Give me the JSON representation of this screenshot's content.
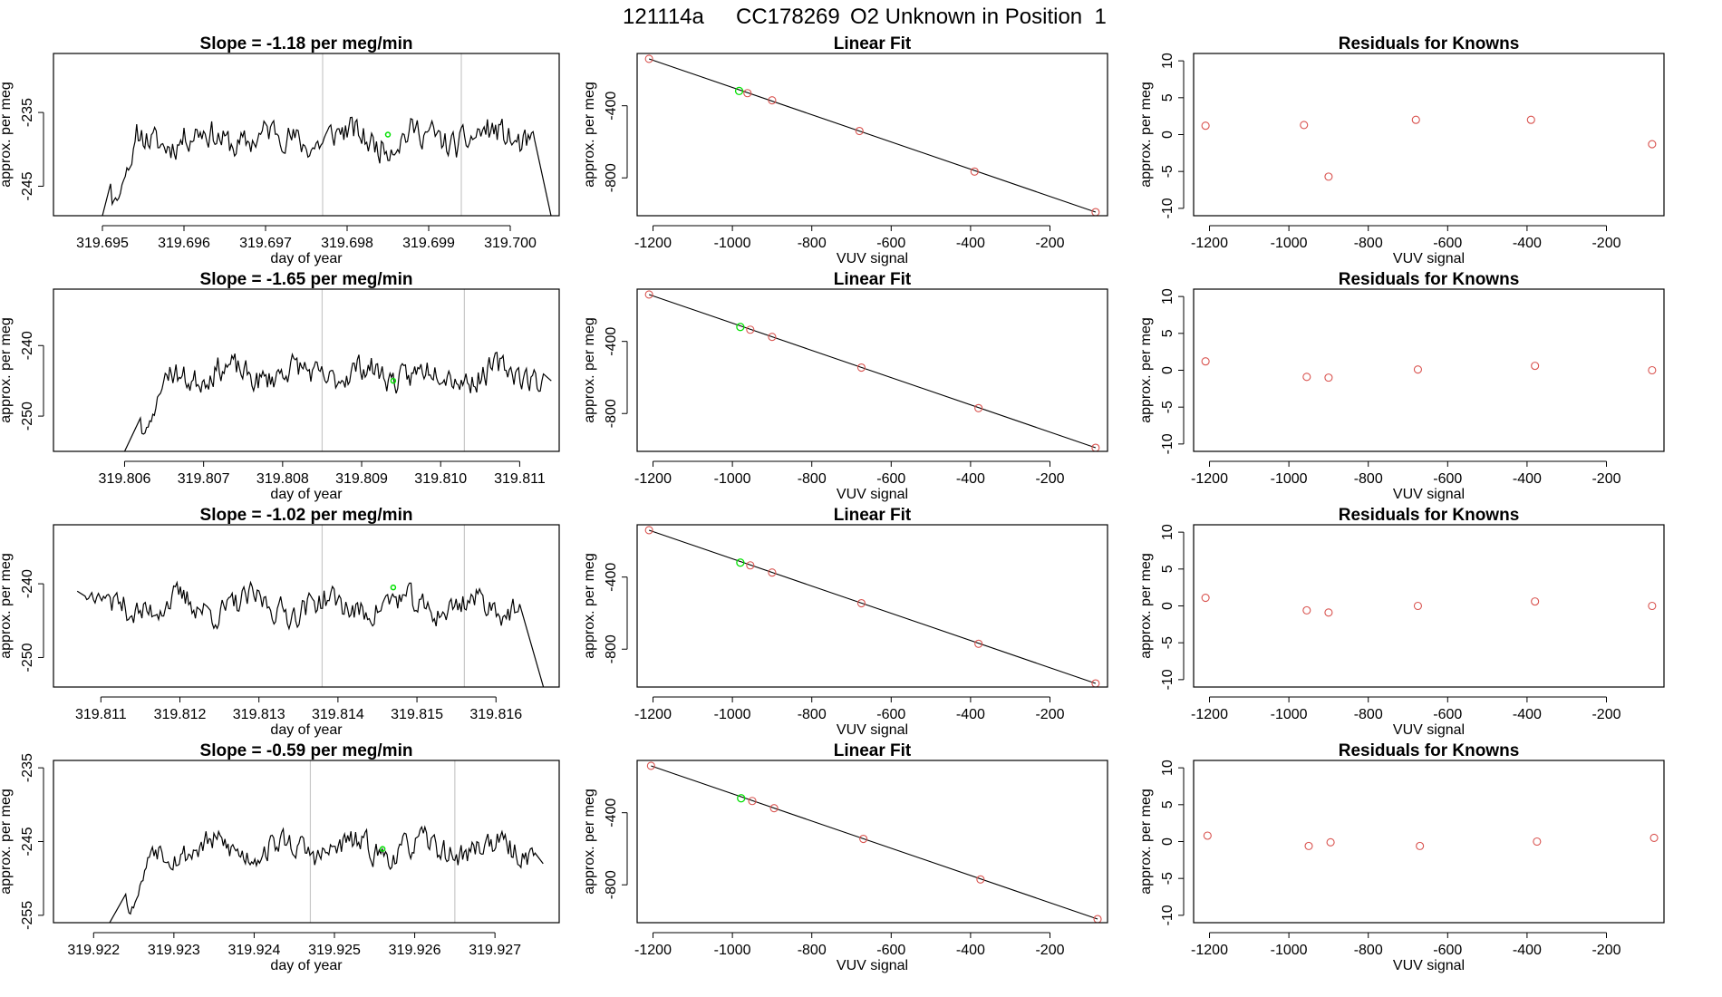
{
  "figure": {
    "title_parts": [
      "121114a",
      "CC178269",
      "O2 Unknown in Position  1"
    ]
  },
  "chart_data": [
    {
      "type": "line",
      "row": 0,
      "title": "Slope =  -1.18  per meg/min",
      "xlabel": "day of year",
      "ylabel": "approx. per meg",
      "xlim": [
        319.6944,
        319.7006
      ],
      "ylim": [
        -249,
        -227
      ],
      "xticks": [
        319.695,
        319.696,
        319.697,
        319.698,
        319.699,
        319.7
      ],
      "xtick_labels": [
        "319.695",
        "319.696",
        "319.697",
        "319.698",
        "319.699",
        "319.700"
      ],
      "yticks": [
        -245,
        -235
      ],
      "ytick_labels": [
        "-245",
        "-235"
      ],
      "vlines": [
        319.6977,
        319.6994
      ],
      "marker": {
        "x": 319.6985,
        "y": -238
      },
      "start": {
        "x": 319.695,
        "y": -249
      },
      "end": {
        "x": 319.7005,
        "y": -249
      },
      "series_start": 319.6951,
      "series_end": 319.7003,
      "level": -238.5,
      "noise": 3.2,
      "seed": 11,
      "drift": 1.0
    },
    {
      "type": "scatter",
      "row": 0,
      "subtype": "linear-fit",
      "title": "Linear Fit",
      "xlabel": "VUV signal",
      "ylabel": "approx. per meg",
      "xlim": [
        -1240,
        -55
      ],
      "ylim": [
        -1010,
        -110
      ],
      "xticks": [
        -1200,
        -1000,
        -800,
        -600,
        -400,
        -200
      ],
      "xtick_labels": [
        "-1200",
        "-1000",
        "-800",
        "-600",
        "-400",
        "-200"
      ],
      "yticks": [
        -800,
        -400
      ],
      "ytick_labels": [
        "-800",
        "-400"
      ],
      "points": [
        [
          -1210,
          -140
        ],
        [
          -962,
          -330
        ],
        [
          -900,
          -370
        ],
        [
          -680,
          -540
        ],
        [
          -390,
          -765
        ],
        [
          -85,
          -990
        ]
      ],
      "unknown": [
        -983,
        -318
      ],
      "fit": [
        [
          -1210,
          -140
        ],
        [
          -85,
          -990
        ]
      ]
    },
    {
      "type": "scatter",
      "row": 0,
      "subtype": "residuals",
      "title": "Residuals for Knowns",
      "xlabel": "VUV signal",
      "ylabel": "approx. per meg",
      "xlim": [
        -1240,
        -55
      ],
      "ylim": [
        -11,
        11
      ],
      "xticks": [
        -1200,
        -1000,
        -800,
        -600,
        -400,
        -200
      ],
      "xtick_labels": [
        "-1200",
        "-1000",
        "-800",
        "-600",
        "-400",
        "-200"
      ],
      "yticks": [
        -10,
        -5,
        0,
        5,
        10
      ],
      "ytick_labels": [
        "-10",
        "-5",
        "0",
        "5",
        "10"
      ],
      "points": [
        [
          -1210,
          1.2
        ],
        [
          -962,
          1.3
        ],
        [
          -900,
          -5.7
        ],
        [
          -680,
          2.0
        ],
        [
          -390,
          2.0
        ],
        [
          -85,
          -1.3
        ]
      ]
    },
    {
      "type": "line",
      "row": 1,
      "title": "Slope =  -1.65  per meg/min",
      "xlabel": "day of year",
      "ylabel": "approx. per meg",
      "xlim": [
        319.8051,
        319.8115
      ],
      "ylim": [
        -255,
        -232
      ],
      "xticks": [
        319.806,
        319.807,
        319.808,
        319.809,
        319.81,
        319.811
      ],
      "xtick_labels": [
        "319.806",
        "319.807",
        "319.808",
        "319.809",
        "319.810",
        "319.811"
      ],
      "yticks": [
        -250,
        -240
      ],
      "ytick_labels": [
        "-250",
        "-240"
      ],
      "vlines": [
        319.8085,
        319.8103
      ],
      "marker": {
        "x": 319.8094,
        "y": -245
      },
      "start": {
        "x": 319.806,
        "y": -255
      },
      "end": {
        "x": 319.8114,
        "y": -245
      },
      "series_start": 319.8062,
      "series_end": 319.8113,
      "level": -244,
      "noise": 3.0,
      "seed": 23,
      "drift": 1.0
    },
    {
      "type": "scatter",
      "row": 1,
      "subtype": "linear-fit",
      "title": "Linear Fit",
      "xlabel": "VUV signal",
      "ylabel": "approx. per meg",
      "xlim": [
        -1240,
        -55
      ],
      "ylim": [
        -1010,
        -110
      ],
      "xticks": [
        -1200,
        -1000,
        -800,
        -600,
        -400,
        -200
      ],
      "xtick_labels": [
        "-1200",
        "-1000",
        "-800",
        "-600",
        "-400",
        "-200"
      ],
      "yticks": [
        -800,
        -400
      ],
      "ytick_labels": [
        "-800",
        "-400"
      ],
      "points": [
        [
          -1210,
          -140
        ],
        [
          -955,
          -335
        ],
        [
          -900,
          -375
        ],
        [
          -675,
          -545
        ],
        [
          -380,
          -770
        ],
        [
          -85,
          -990
        ]
      ],
      "unknown": [
        -980,
        -320
      ],
      "fit": [
        [
          -1210,
          -140
        ],
        [
          -85,
          -990
        ]
      ]
    },
    {
      "type": "scatter",
      "row": 1,
      "subtype": "residuals",
      "title": "Residuals for Knowns",
      "xlabel": "VUV signal",
      "ylabel": "approx. per meg",
      "xlim": [
        -1240,
        -55
      ],
      "ylim": [
        -11,
        11
      ],
      "xticks": [
        -1200,
        -1000,
        -800,
        -600,
        -400,
        -200
      ],
      "xtick_labels": [
        "-1200",
        "-1000",
        "-800",
        "-600",
        "-400",
        "-200"
      ],
      "yticks": [
        -10,
        -5,
        0,
        5,
        10
      ],
      "ytick_labels": [
        "-10",
        "-5",
        "0",
        "5",
        "10"
      ],
      "points": [
        [
          -1210,
          1.2
        ],
        [
          -955,
          -0.9
        ],
        [
          -900,
          -1.0
        ],
        [
          -675,
          0.1
        ],
        [
          -380,
          0.6
        ],
        [
          -85,
          0.0
        ]
      ]
    },
    {
      "type": "line",
      "row": 2,
      "title": "Slope =  -1.02  per meg/min",
      "xlabel": "day of year",
      "ylabel": "approx. per meg",
      "xlim": [
        319.8104,
        319.8168
      ],
      "ylim": [
        -254,
        -232
      ],
      "xticks": [
        319.811,
        319.812,
        319.813,
        319.814,
        319.815,
        319.816
      ],
      "xtick_labels": [
        "319.811",
        "319.812",
        "319.813",
        "319.814",
        "319.815",
        "319.816"
      ],
      "yticks": [
        -250,
        -240
      ],
      "ytick_labels": [
        "-250",
        "-240"
      ],
      "vlines": [
        319.8138,
        319.8156
      ],
      "marker": {
        "x": 319.8147,
        "y": -240.5
      },
      "start": {
        "x": 319.8107,
        "y": -241
      },
      "end": {
        "x": 319.8166,
        "y": -254
      },
      "series_start": 319.8108,
      "series_end": 319.8163,
      "level": -243,
      "noise": 3.0,
      "seed": 37,
      "drift": 0.5
    },
    {
      "type": "scatter",
      "row": 2,
      "subtype": "linear-fit",
      "title": "Linear Fit",
      "xlabel": "VUV signal",
      "ylabel": "approx. per meg",
      "xlim": [
        -1240,
        -55
      ],
      "ylim": [
        -1010,
        -110
      ],
      "xticks": [
        -1200,
        -1000,
        -800,
        -600,
        -400,
        -200
      ],
      "xtick_labels": [
        "-1200",
        "-1000",
        "-800",
        "-600",
        "-400",
        "-200"
      ],
      "yticks": [
        -800,
        -400
      ],
      "ytick_labels": [
        "-800",
        "-400"
      ],
      "points": [
        [
          -1210,
          -140
        ],
        [
          -955,
          -335
        ],
        [
          -900,
          -375
        ],
        [
          -675,
          -545
        ],
        [
          -380,
          -770
        ],
        [
          -85,
          -990
        ]
      ],
      "unknown": [
        -980,
        -320
      ],
      "fit": [
        [
          -1210,
          -140
        ],
        [
          -85,
          -990
        ]
      ]
    },
    {
      "type": "scatter",
      "row": 2,
      "subtype": "residuals",
      "title": "Residuals for Knowns",
      "xlabel": "VUV signal",
      "ylabel": "approx. per meg",
      "xlim": [
        -1240,
        -55
      ],
      "ylim": [
        -11,
        11
      ],
      "xticks": [
        -1200,
        -1000,
        -800,
        -600,
        -400,
        -200
      ],
      "xtick_labels": [
        "-1200",
        "-1000",
        "-800",
        "-600",
        "-400",
        "-200"
      ],
      "yticks": [
        -10,
        -5,
        0,
        5,
        10
      ],
      "ytick_labels": [
        "-10",
        "-5",
        "0",
        "5",
        "10"
      ],
      "points": [
        [
          -1210,
          1.1
        ],
        [
          -955,
          -0.6
        ],
        [
          -900,
          -0.9
        ],
        [
          -675,
          0.0
        ],
        [
          -380,
          0.6
        ],
        [
          -85,
          0.0
        ]
      ]
    },
    {
      "type": "line",
      "row": 3,
      "title": "Slope =  -0.59  per meg/min",
      "xlabel": "day of year",
      "ylabel": "approx. per meg",
      "xlim": [
        319.9215,
        319.9278
      ],
      "ylim": [
        -256,
        -234
      ],
      "xticks": [
        319.922,
        319.923,
        319.924,
        319.925,
        319.926,
        319.927
      ],
      "xtick_labels": [
        "319.922",
        "319.923",
        "319.924",
        "319.925",
        "319.926",
        "319.927"
      ],
      "yticks": [
        -255,
        -245,
        -235
      ],
      "ytick_labels": [
        "-255",
        "-245",
        "-235"
      ],
      "vlines": [
        319.9247,
        319.9265
      ],
      "marker": {
        "x": 319.9256,
        "y": -246
      },
      "start": {
        "x": 319.9222,
        "y": -256
      },
      "end": {
        "x": 319.9276,
        "y": -248
      },
      "series_start": 319.9224,
      "series_end": 319.9275,
      "level": -246,
      "noise": 2.8,
      "seed": 53,
      "drift": 1.0
    },
    {
      "type": "scatter",
      "row": 3,
      "subtype": "linear-fit",
      "title": "Linear Fit",
      "xlabel": "VUV signal",
      "ylabel": "approx. per meg",
      "xlim": [
        -1240,
        -55
      ],
      "ylim": [
        -1010,
        -110
      ],
      "xticks": [
        -1200,
        -1000,
        -800,
        -600,
        -400,
        -200
      ],
      "xtick_labels": [
        "-1200",
        "-1000",
        "-800",
        "-600",
        "-400",
        "-200"
      ],
      "yticks": [
        -800,
        -400
      ],
      "ytick_labels": [
        "-800",
        "-400"
      ],
      "points": [
        [
          -1205,
          -140
        ],
        [
          -950,
          -335
        ],
        [
          -895,
          -375
        ],
        [
          -670,
          -545
        ],
        [
          -375,
          -770
        ],
        [
          -80,
          -990
        ]
      ],
      "unknown": [
        -978,
        -320
      ],
      "fit": [
        [
          -1205,
          -140
        ],
        [
          -80,
          -990
        ]
      ]
    },
    {
      "type": "scatter",
      "row": 3,
      "subtype": "residuals",
      "title": "Residuals for Knowns",
      "xlabel": "VUV signal",
      "ylabel": "approx. per meg",
      "xlim": [
        -1240,
        -55
      ],
      "ylim": [
        -11,
        11
      ],
      "xticks": [
        -1200,
        -1000,
        -800,
        -600,
        -400,
        -200
      ],
      "xtick_labels": [
        "-1200",
        "-1000",
        "-800",
        "-600",
        "-400",
        "-200"
      ],
      "yticks": [
        -10,
        -5,
        0,
        5,
        10
      ],
      "ytick_labels": [
        "-10",
        "-5",
        "0",
        "5",
        "10"
      ],
      "points": [
        [
          -1205,
          0.8
        ],
        [
          -950,
          -0.6
        ],
        [
          -895,
          -0.1
        ],
        [
          -670,
          -0.6
        ],
        [
          -375,
          0.0
        ],
        [
          -80,
          0.5
        ]
      ]
    }
  ],
  "colors": {
    "line": "#000000",
    "known": "#d9534f",
    "unknown": "#00e000",
    "vline": "#c8c8c8"
  }
}
